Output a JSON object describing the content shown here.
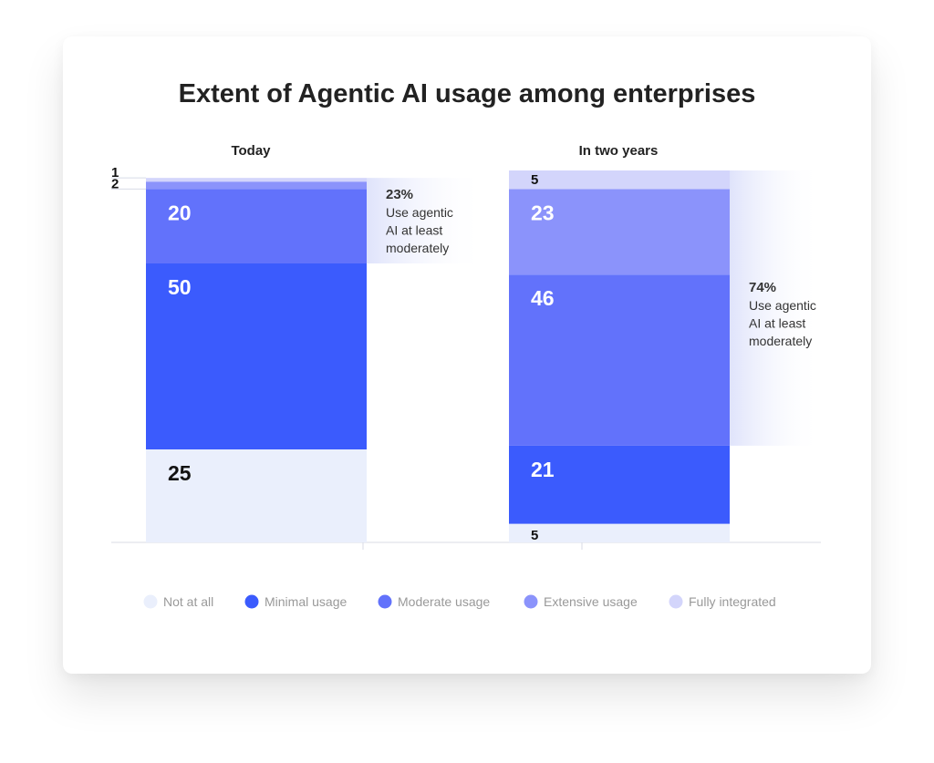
{
  "chart_data": {
    "type": "bar",
    "stacked": true,
    "title": "Extent of Agentic AI usage among enterprises",
    "categories": [
      "Today",
      "In two years"
    ],
    "series": [
      {
        "name": "Not at all",
        "color": "#eaeffc",
        "values": [
          25,
          5
        ]
      },
      {
        "name": "Minimal usage",
        "color": "#3b5bfd",
        "values": [
          50,
          21
        ]
      },
      {
        "name": "Moderate usage",
        "color": "#6272fb",
        "values": [
          20,
          46
        ]
      },
      {
        "name": "Extensive usage",
        "color": "#8b93fb",
        "values": [
          2,
          23
        ]
      },
      {
        "name": "Fully integrated",
        "color": "#d3d5fb",
        "values": [
          1,
          5
        ]
      }
    ],
    "annotations": [
      {
        "pct": "23%",
        "lines": [
          "Use agentic",
          "AI at least",
          "moderately"
        ]
      },
      {
        "pct": "74%",
        "lines": [
          "Use agentic",
          "AI at least",
          "moderately"
        ]
      }
    ],
    "legend_position": "bottom",
    "ylim": [
      0,
      100
    ]
  }
}
